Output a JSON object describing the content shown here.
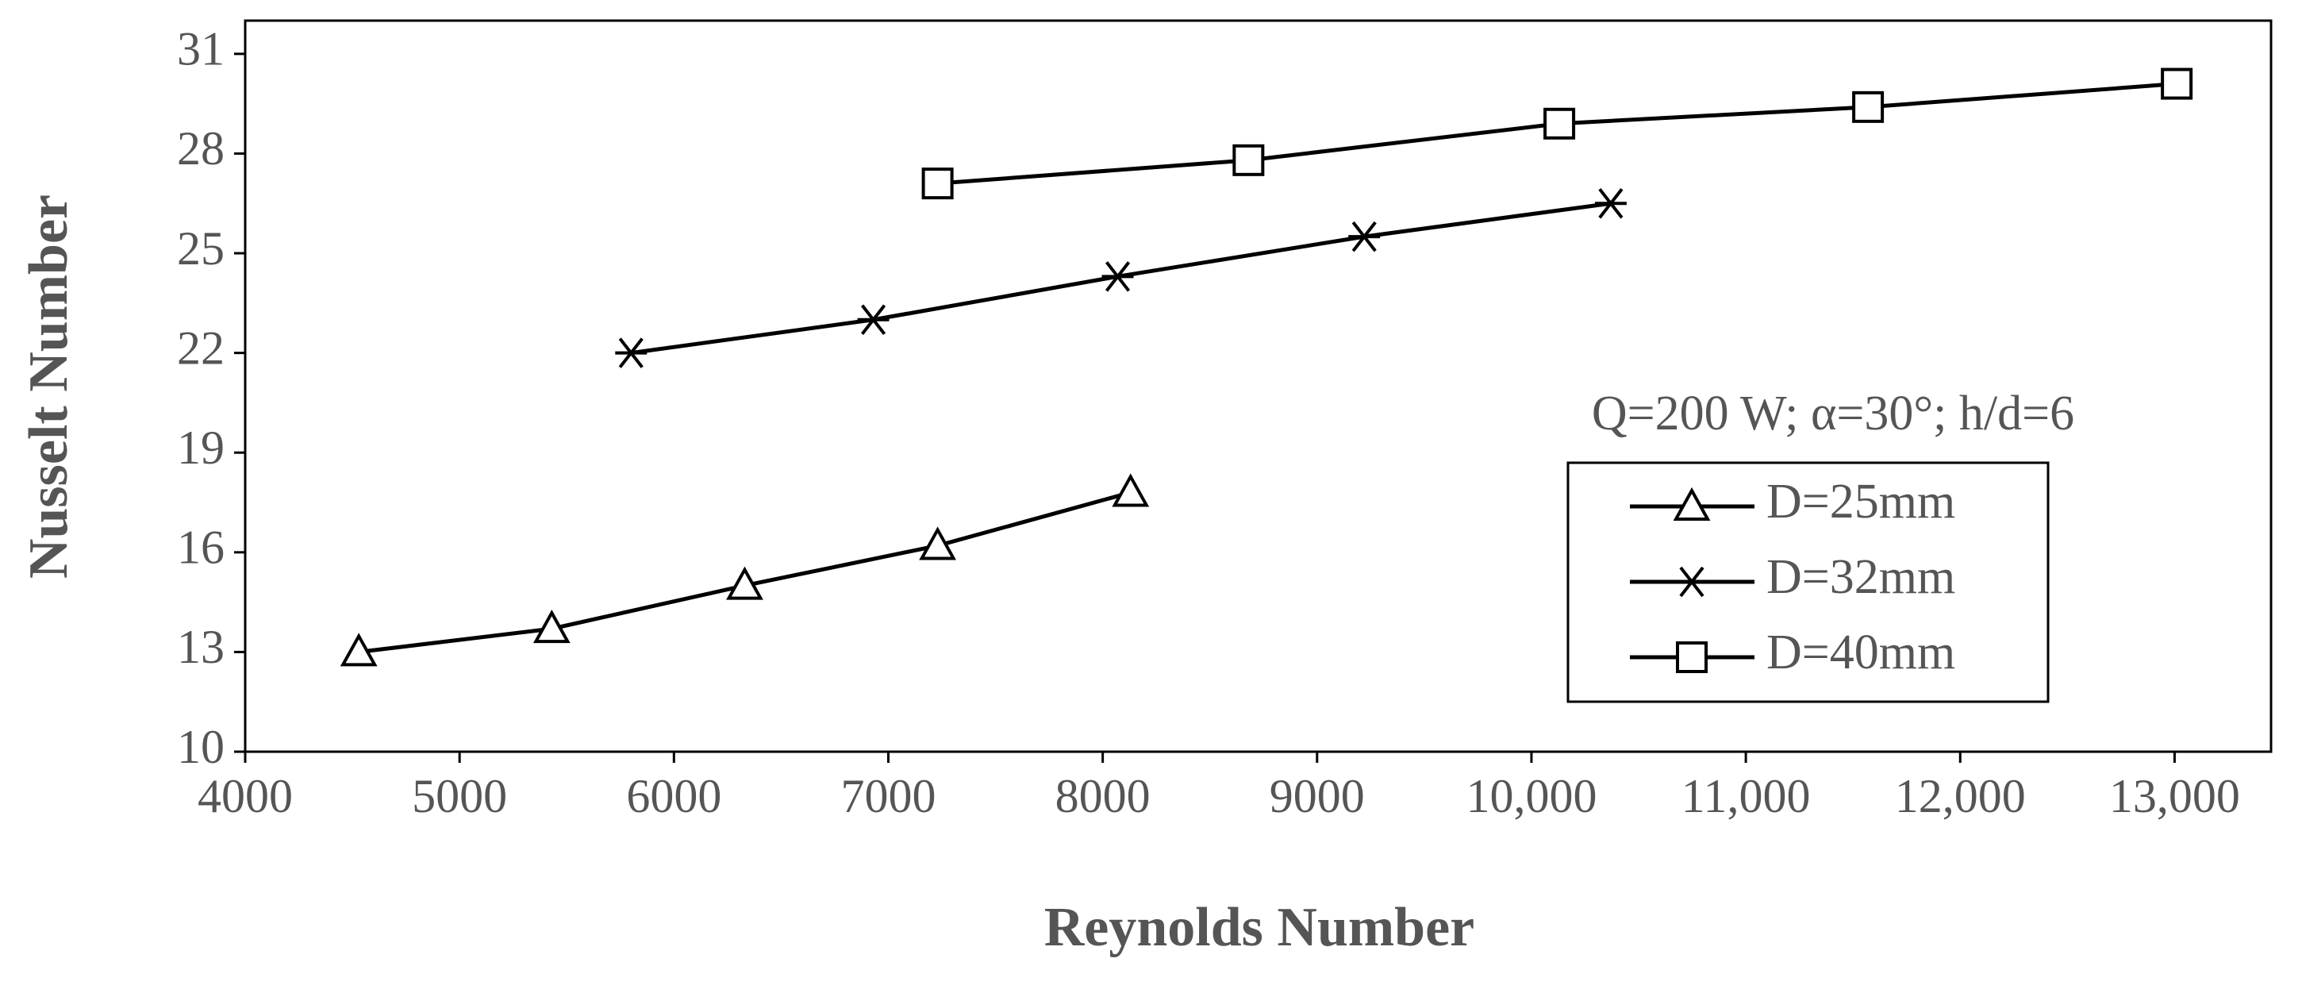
{
  "chart_data": {
    "type": "line",
    "x_label": "Reynolds Number",
    "y_label": "Nusselt Number",
    "annotation": "Q=200 W; α=30°;  h/d=6",
    "xlim": [
      4000,
      13450
    ],
    "ylim": [
      10,
      32
    ],
    "xticks": [
      4000,
      5000,
      6000,
      7000,
      8000,
      9000,
      {
        "value": 10000,
        "label": "10,000"
      },
      {
        "value": 11000,
        "label": "11,000"
      },
      {
        "value": 12000,
        "label": "12,000"
      },
      {
        "value": 13000,
        "label": "13,000"
      }
    ],
    "yticks": [
      10,
      13,
      16,
      19,
      22,
      25,
      28,
      31
    ],
    "legend": "lower-right",
    "series": [
      {
        "name": "D=25mm",
        "color": "#000000",
        "marker": "triangle",
        "x": [
          4530,
          5430,
          6330,
          7230,
          8130
        ],
        "values": [
          13.0,
          13.7,
          15.0,
          16.2,
          17.8
        ]
      },
      {
        "name": "D=32mm",
        "color": "#000000",
        "marker": "asterisk",
        "x": [
          5800,
          6930,
          8070,
          9220,
          10370
        ],
        "values": [
          22.0,
          23.0,
          24.3,
          25.5,
          26.5
        ]
      },
      {
        "name": "D=40mm",
        "color": "#000000",
        "marker": "square",
        "x": [
          7230,
          8680,
          10130,
          11570,
          13010
        ],
        "values": [
          27.1,
          27.8,
          28.9,
          29.4,
          30.1
        ]
      }
    ]
  }
}
